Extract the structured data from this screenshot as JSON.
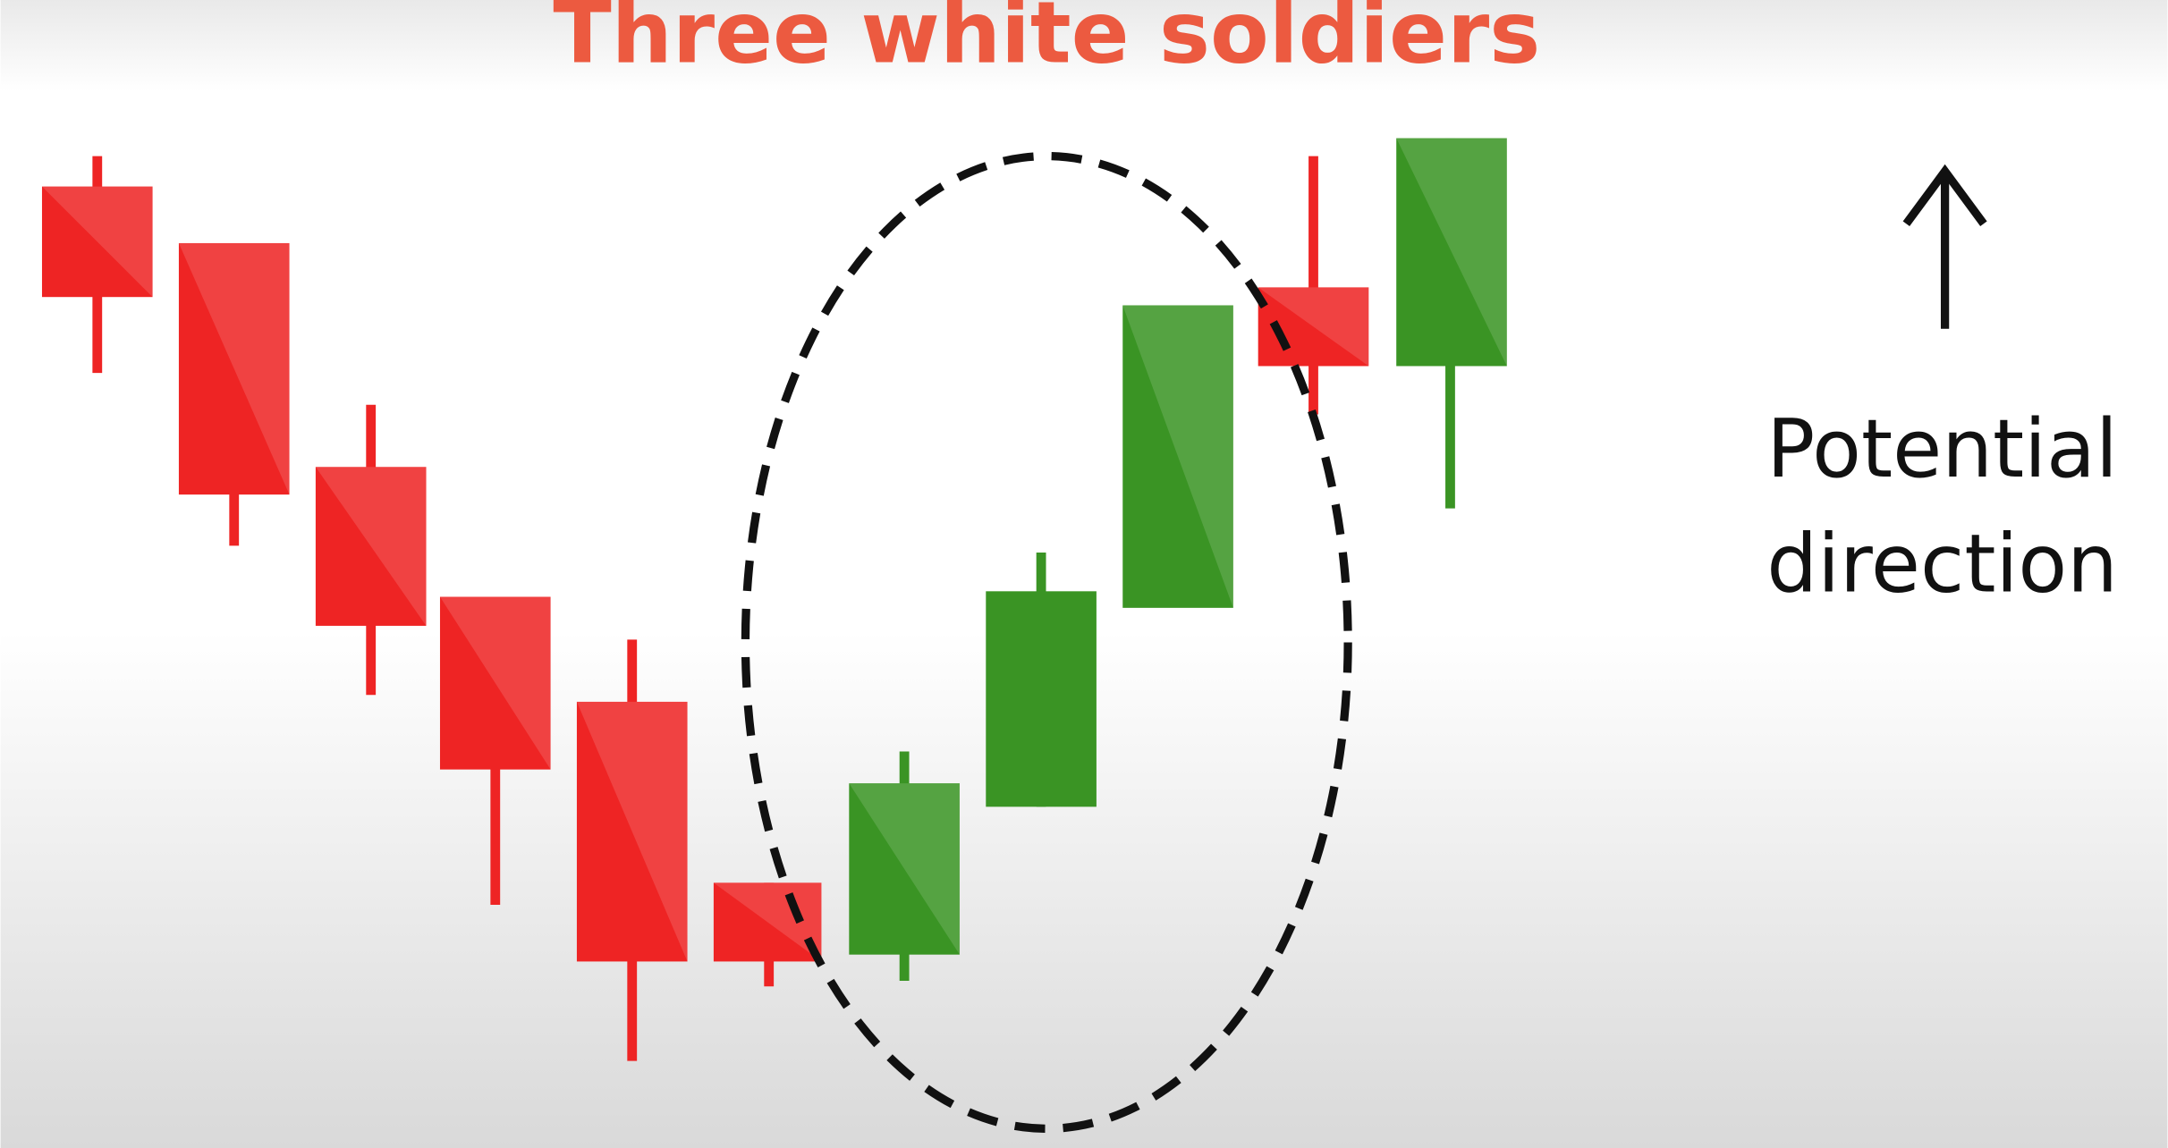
{
  "header": {
    "title": "Three white soldiers"
  },
  "annotation": {
    "lines": [
      "Potential",
      "direction"
    ]
  }
}
